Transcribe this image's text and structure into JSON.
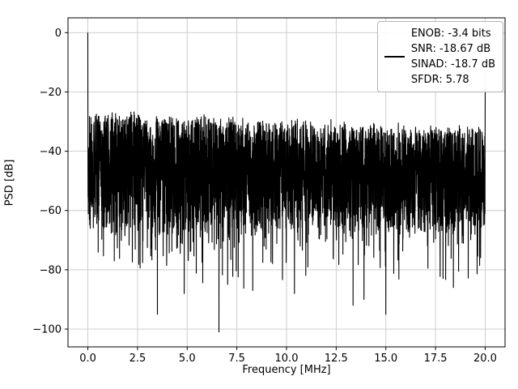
{
  "chart_data": {
    "type": "line",
    "title": "",
    "xlabel": "Frequency [MHz]",
    "ylabel": "PSD [dB]",
    "xlim": [
      -1,
      21
    ],
    "ylim": [
      -106,
      5
    ],
    "xticks": [
      0.0,
      2.5,
      5.0,
      7.5,
      10.0,
      12.5,
      15.0,
      17.5,
      20.0
    ],
    "xtick_labels": [
      "0.0",
      "2.5",
      "5.0",
      "7.5",
      "10.0",
      "12.5",
      "15.0",
      "17.5",
      "20.0"
    ],
    "yticks": [
      0,
      -20,
      -40,
      -60,
      -80,
      -100
    ],
    "ytick_labels": [
      "0",
      "−20",
      "−40",
      "−60",
      "−80",
      "−100"
    ],
    "grid": true,
    "grid_color": "#c8c8c8",
    "line_color": "#000000",
    "legend": {
      "position": "upper right",
      "entries": [
        "ENOB: -3.4 bits",
        "SNR: -18.67 dB",
        "SINAD: -18.7 dB",
        "SFDR: 5.78"
      ]
    },
    "signal_peaks": [
      {
        "x_mhz": 0.0,
        "psd_db": 0.0
      },
      {
        "x_mhz": 20.0,
        "psd_db": -18.6
      }
    ],
    "noise_band": {
      "points": 3500,
      "top_start_db": -27.0,
      "top_end_db": -33.0,
      "top_jitter_db": 3.0,
      "bottom_db": -67.0,
      "dip_probability": 0.05,
      "dip_max_extra_db": 22
    },
    "deep_nulls": [
      {
        "x_mhz": 3.5,
        "psd_db": -95
      },
      {
        "x_mhz": 4.85,
        "psd_db": -88
      },
      {
        "x_mhz": 6.6,
        "psd_db": -101
      },
      {
        "x_mhz": 8.3,
        "psd_db": -87
      },
      {
        "x_mhz": 10.4,
        "psd_db": -88
      },
      {
        "x_mhz": 13.35,
        "psd_db": -92
      },
      {
        "x_mhz": 13.9,
        "psd_db": -90
      },
      {
        "x_mhz": 15.0,
        "psd_db": -95
      },
      {
        "x_mhz": 18.4,
        "psd_db": -86
      }
    ]
  }
}
